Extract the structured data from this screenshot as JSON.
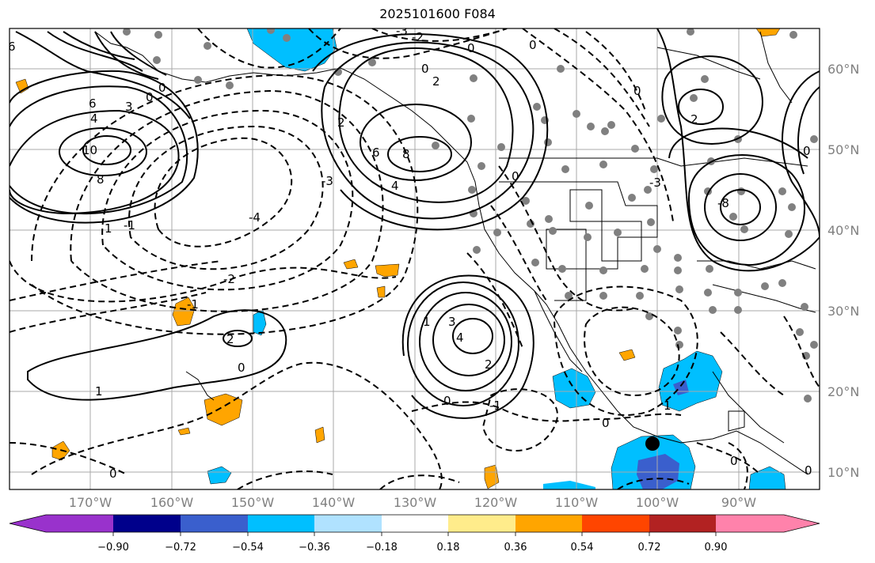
{
  "title": "2025101600 F084",
  "lat_labels": [
    "60°N",
    "50°N",
    "40°N",
    "30°N",
    "20°N",
    "10°N"
  ],
  "lon_labels": [
    "170°W",
    "160°W",
    "150°W",
    "140°W",
    "130°W",
    "120°W",
    "110°W",
    "100°W",
    "90°W"
  ],
  "colorbar": {
    "colors": [
      "#9932CC",
      "#00008B",
      "#3A5FCD",
      "#00BFFF",
      "#B0E2FF",
      "#FFFFFF",
      "#FFEC8B",
      "#FFA500",
      "#FF4500",
      "#B22222",
      "#FF82AB"
    ],
    "tick_labels": [
      "−0.90",
      "−0.72",
      "−0.54",
      "−0.36",
      "−0.18",
      "0.18",
      "0.36",
      "0.54",
      "0.72",
      "0.90"
    ]
  },
  "contour_labels": [
    "6",
    "4",
    "6",
    "10",
    "8",
    "3",
    "2",
    "0",
    "0",
    "2",
    "-3",
    "-2",
    "3",
    "-3",
    "6",
    "8",
    "4",
    "6",
    "-2",
    "0",
    "2",
    "-8",
    "8",
    "6",
    "0",
    "4",
    "-3",
    "-2",
    "1",
    "-1",
    "-2",
    "-2",
    "-2",
    "-1",
    "2",
    "-1",
    "1",
    "0",
    "0",
    "-1",
    "-2",
    "-3",
    "-4",
    "2",
    "0",
    "-1",
    "-0",
    "0",
    "0",
    "0"
  ],
  "marker_color": "#000000",
  "station_color": "#808080"
}
